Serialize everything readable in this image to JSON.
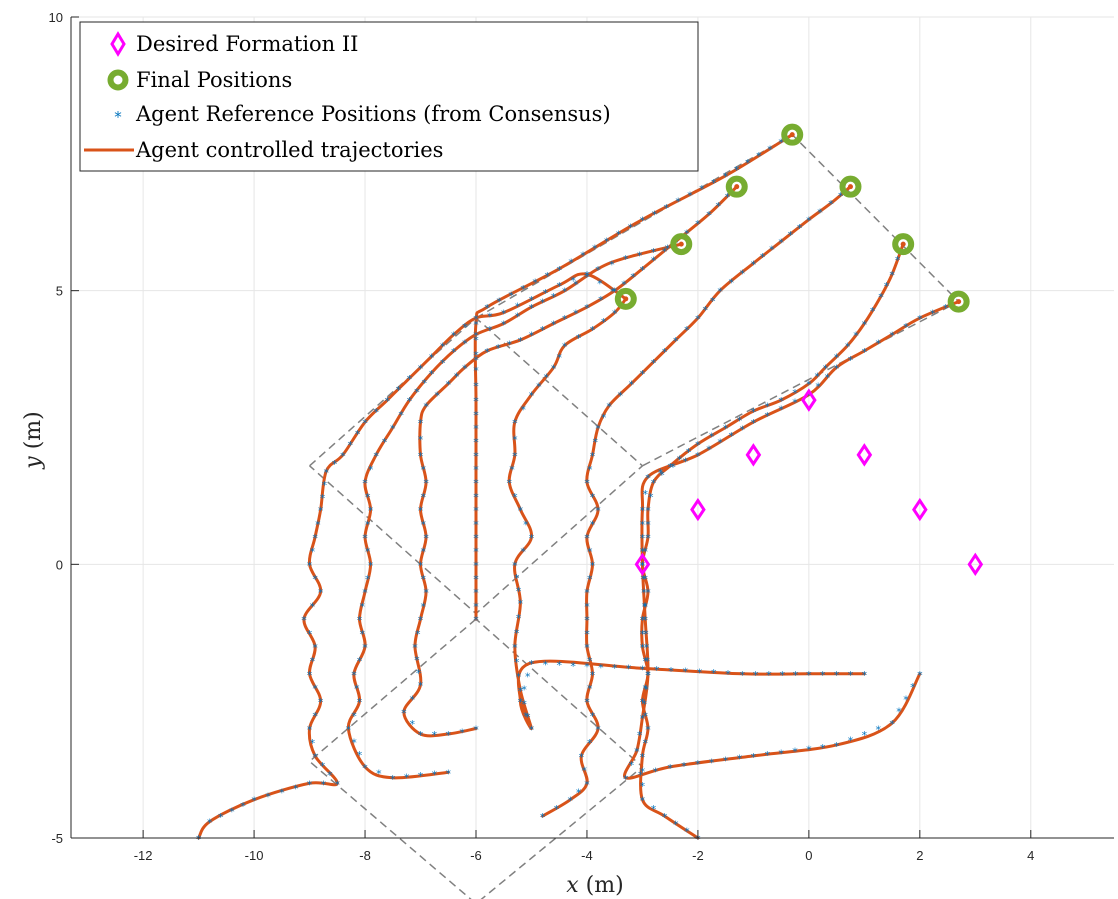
{
  "chart_data": {
    "type": "line",
    "xlabel_var": "x",
    "xlabel_unit": " (m)",
    "ylabel_var": "y",
    "ylabel_unit": " (m)",
    "xlim": [
      -13.3,
      5.5
    ],
    "ylim": [
      -5,
      10
    ],
    "x_ticks": [
      -12,
      -10,
      -8,
      -6,
      -4,
      -2,
      0,
      2,
      4
    ],
    "y_ticks": [
      -5,
      0,
      5,
      10
    ],
    "grid": true,
    "legend_position": "top-left",
    "legend": [
      {
        "label": "Desired Formation II",
        "marker": "diamond",
        "color": "#ff00ff"
      },
      {
        "label": "Final Positions",
        "marker": "circle",
        "color": "#77ac30"
      },
      {
        "label": "Agent Reference Positions (from Consensus)",
        "marker": "asterisk",
        "color": "#0072bd"
      },
      {
        "label": "Agent controlled trajectories",
        "marker": "line",
        "color": "#d95319"
      }
    ],
    "desired_formation": [
      [
        -3,
        0
      ],
      [
        -2,
        1
      ],
      [
        -1,
        2
      ],
      [
        0,
        3
      ],
      [
        1,
        2
      ],
      [
        2,
        1
      ],
      [
        3,
        0
      ]
    ],
    "final_positions": [
      [
        -3.3,
        4.85
      ],
      [
        -2.3,
        5.85
      ],
      [
        -1.3,
        6.9
      ],
      [
        -0.3,
        7.85
      ],
      [
        0.75,
        6.9
      ],
      [
        1.7,
        5.85
      ],
      [
        2.7,
        4.8
      ]
    ],
    "reference_formation_outline": [
      [
        [
          -6,
          -1
        ],
        [
          -9,
          -3.6
        ],
        [
          -6.0,
          -6.2
        ],
        [
          -3,
          -3.7
        ],
        [
          -6,
          -1
        ]
      ],
      [
        [
          -9,
          1.8
        ],
        [
          -6,
          4.5
        ],
        [
          -3,
          1.8
        ],
        [
          -6,
          -0.9
        ],
        [
          -9,
          1.8
        ]
      ],
      [
        [
          -6,
          4.5
        ],
        [
          -0.3,
          7.85
        ],
        [
          2.7,
          4.8
        ],
        [
          -3,
          1.8
        ]
      ]
    ],
    "series": [
      {
        "name": "",
        "color": "#d95319",
        "points": [
          [
            -11,
            -5
          ],
          [
            -10.8,
            -4.7
          ],
          [
            -10,
            -4.3
          ],
          [
            -9,
            -4.0
          ],
          [
            -8.5,
            -4.0
          ],
          [
            -8.9,
            -3.5
          ],
          [
            -9.0,
            -3.0
          ],
          [
            -8.8,
            -2.5
          ],
          [
            -9.0,
            -2.0
          ],
          [
            -8.9,
            -1.5
          ],
          [
            -9.1,
            -1.0
          ],
          [
            -8.8,
            -0.5
          ],
          [
            -9.0,
            0
          ],
          [
            -8.9,
            0.5
          ],
          [
            -8.8,
            1.0
          ],
          [
            -8.7,
            1.7
          ],
          [
            -8.4,
            2.0
          ],
          [
            -8.0,
            2.6
          ],
          [
            -7.6,
            3.0
          ],
          [
            -7.2,
            3.4
          ],
          [
            -6.8,
            3.8
          ],
          [
            -6.4,
            4.2
          ],
          [
            -6.0,
            4.5
          ],
          [
            -5.5,
            4.6
          ],
          [
            -4.5,
            5.1
          ],
          [
            -4.0,
            5.3
          ],
          [
            -3.3,
            4.85
          ]
        ]
      },
      {
        "name": "",
        "color": "#d95319",
        "points": [
          [
            -6.5,
            -3.8
          ],
          [
            -7.5,
            -3.9
          ],
          [
            -8.0,
            -3.7
          ],
          [
            -8.3,
            -3.0
          ],
          [
            -8.1,
            -2.5
          ],
          [
            -8.2,
            -2.0
          ],
          [
            -8.0,
            -1.5
          ],
          [
            -8.1,
            -1.0
          ],
          [
            -8.0,
            -0.5
          ],
          [
            -7.9,
            0
          ],
          [
            -8.0,
            0.5
          ],
          [
            -7.9,
            1.0
          ],
          [
            -8.0,
            1.5
          ],
          [
            -7.8,
            2.0
          ],
          [
            -7.5,
            2.5
          ],
          [
            -7.2,
            3.0
          ],
          [
            -6.8,
            3.5
          ],
          [
            -6.4,
            3.9
          ],
          [
            -6.0,
            4.2
          ],
          [
            -5.5,
            4.4
          ],
          [
            -5.0,
            4.7
          ],
          [
            -4.4,
            5.0
          ],
          [
            -3.8,
            5.4
          ],
          [
            -3.3,
            5.6
          ],
          [
            -2.3,
            5.85
          ]
        ]
      },
      {
        "name": "",
        "color": "#d95319",
        "points": [
          [
            -6.0,
            -3.0
          ],
          [
            -6.5,
            -3.1
          ],
          [
            -7.0,
            -3.1
          ],
          [
            -7.3,
            -2.7
          ],
          [
            -7.0,
            -2.2
          ],
          [
            -7.1,
            -1.5
          ],
          [
            -7.0,
            -1.0
          ],
          [
            -6.9,
            -0.5
          ],
          [
            -7.0,
            0
          ],
          [
            -6.9,
            0.5
          ],
          [
            -7.0,
            1.0
          ],
          [
            -6.9,
            1.5
          ],
          [
            -7.0,
            2.0
          ],
          [
            -7.0,
            2.6
          ],
          [
            -6.9,
            2.9
          ],
          [
            -6.5,
            3.3
          ],
          [
            -6.2,
            3.6
          ],
          [
            -5.8,
            3.9
          ],
          [
            -5.2,
            4.1
          ],
          [
            -4.6,
            4.4
          ],
          [
            -4.0,
            4.7
          ],
          [
            -3.5,
            5.0
          ],
          [
            -3.0,
            5.4
          ],
          [
            -2.4,
            5.9
          ],
          [
            -1.8,
            6.4
          ],
          [
            -1.3,
            6.9
          ]
        ]
      },
      {
        "name": "",
        "color": "#d95319",
        "points": [
          [
            -6,
            -1
          ],
          [
            -6,
            0
          ],
          [
            -6,
            1
          ],
          [
            -6,
            2
          ],
          [
            -6,
            3
          ],
          [
            -6,
            4.4
          ],
          [
            -5.8,
            4.7
          ],
          [
            -4.5,
            5.4
          ],
          [
            -3,
            6.3
          ],
          [
            -1.5,
            7.1
          ],
          [
            -0.3,
            7.85
          ]
        ]
      },
      {
        "name": "",
        "color": "#d95319",
        "points": [
          [
            -4.8,
            -4.6
          ],
          [
            -4.3,
            -4.3
          ],
          [
            -4.0,
            -4.0
          ],
          [
            -4.1,
            -3.5
          ],
          [
            -3.8,
            -3.0
          ],
          [
            -4.0,
            -2.5
          ],
          [
            -3.9,
            -2.0
          ],
          [
            -4.0,
            -1.5
          ],
          [
            -4.0,
            -1.0
          ],
          [
            -4.0,
            -0.5
          ],
          [
            -3.9,
            0
          ],
          [
            -4.0,
            0.5
          ],
          [
            -3.8,
            1.0
          ],
          [
            -4.0,
            1.5
          ],
          [
            -3.9,
            2.0
          ],
          [
            -3.8,
            2.5
          ],
          [
            -3.6,
            2.9
          ],
          [
            -3.2,
            3.3
          ],
          [
            -2.8,
            3.7
          ],
          [
            -2.4,
            4.1
          ],
          [
            -2.0,
            4.5
          ],
          [
            -1.6,
            5.0
          ],
          [
            -1.0,
            5.5
          ],
          [
            -0.5,
            5.9
          ],
          [
            0.0,
            6.3
          ],
          [
            0.4,
            6.6
          ],
          [
            0.75,
            6.9
          ]
        ]
      },
      {
        "name": "",
        "color": "#d95319",
        "points": [
          [
            -2.0,
            -5.0
          ],
          [
            -2.6,
            -4.6
          ],
          [
            -3.0,
            -4.3
          ],
          [
            -3.0,
            -3.5
          ],
          [
            -2.9,
            -3.0
          ],
          [
            -3.0,
            -2.5
          ],
          [
            -2.9,
            -2.0
          ],
          [
            -3.0,
            -1.5
          ],
          [
            -3.0,
            -1.0
          ],
          [
            -2.9,
            -0.5
          ],
          [
            -3.0,
            0
          ],
          [
            -2.9,
            0.5
          ],
          [
            -2.9,
            1.0
          ],
          [
            -2.8,
            1.5
          ],
          [
            -2.5,
            1.8
          ],
          [
            -2.0,
            2.2
          ],
          [
            -1.5,
            2.5
          ],
          [
            -1.0,
            2.8
          ],
          [
            -0.5,
            3.0
          ],
          [
            0.0,
            3.3
          ],
          [
            0.3,
            3.6
          ],
          [
            0.7,
            4.0
          ],
          [
            1.0,
            4.4
          ],
          [
            1.3,
            4.9
          ],
          [
            1.5,
            5.3
          ],
          [
            1.7,
            5.85
          ]
        ]
      },
      {
        "name": "",
        "color": "#d95319",
        "points": [
          [
            2.0,
            -2.0
          ],
          [
            1.5,
            -2.9
          ],
          [
            0.5,
            -3.3
          ],
          [
            -1.0,
            -3.5
          ],
          [
            -2.5,
            -3.7
          ],
          [
            -3.3,
            -3.9
          ],
          [
            -3.1,
            -3.4
          ],
          [
            -3.0,
            -2.8
          ],
          [
            -2.9,
            -2.0
          ],
          [
            -2.95,
            -1.0
          ],
          [
            -3.0,
            0
          ],
          [
            -3.0,
            1.0
          ],
          [
            -2.9,
            1.6
          ],
          [
            -2.0,
            2.0
          ],
          [
            -1.0,
            2.6
          ],
          [
            0.0,
            3.1
          ],
          [
            0.5,
            3.6
          ],
          [
            1.0,
            3.9
          ],
          [
            1.5,
            4.2
          ],
          [
            2.0,
            4.5
          ],
          [
            2.7,
            4.8
          ]
        ]
      },
      {
        "name": "",
        "color": "#d95319",
        "points": [
          [
            1.0,
            -2.0
          ],
          [
            0,
            -2.0
          ],
          [
            -1.2,
            -2.0
          ],
          [
            -3.0,
            -1.9
          ],
          [
            -5.0,
            -1.8
          ],
          [
            -5.2,
            -2.5
          ],
          [
            -5.0,
            -3.0
          ],
          [
            -5.2,
            -2.3
          ],
          [
            -5.3,
            -1.5
          ],
          [
            -5.2,
            -0.7
          ],
          [
            -5.3,
            0
          ],
          [
            -5.0,
            0.5
          ],
          [
            -5.2,
            1.0
          ],
          [
            -5.4,
            1.5
          ],
          [
            -5.3,
            2.0
          ],
          [
            -5.3,
            2.6
          ],
          [
            -5.0,
            3.1
          ],
          [
            -4.6,
            3.6
          ],
          [
            -4.4,
            4.0
          ],
          [
            -3.9,
            4.3
          ],
          [
            -3.5,
            4.6
          ],
          [
            -3.3,
            4.85
          ]
        ]
      }
    ]
  }
}
